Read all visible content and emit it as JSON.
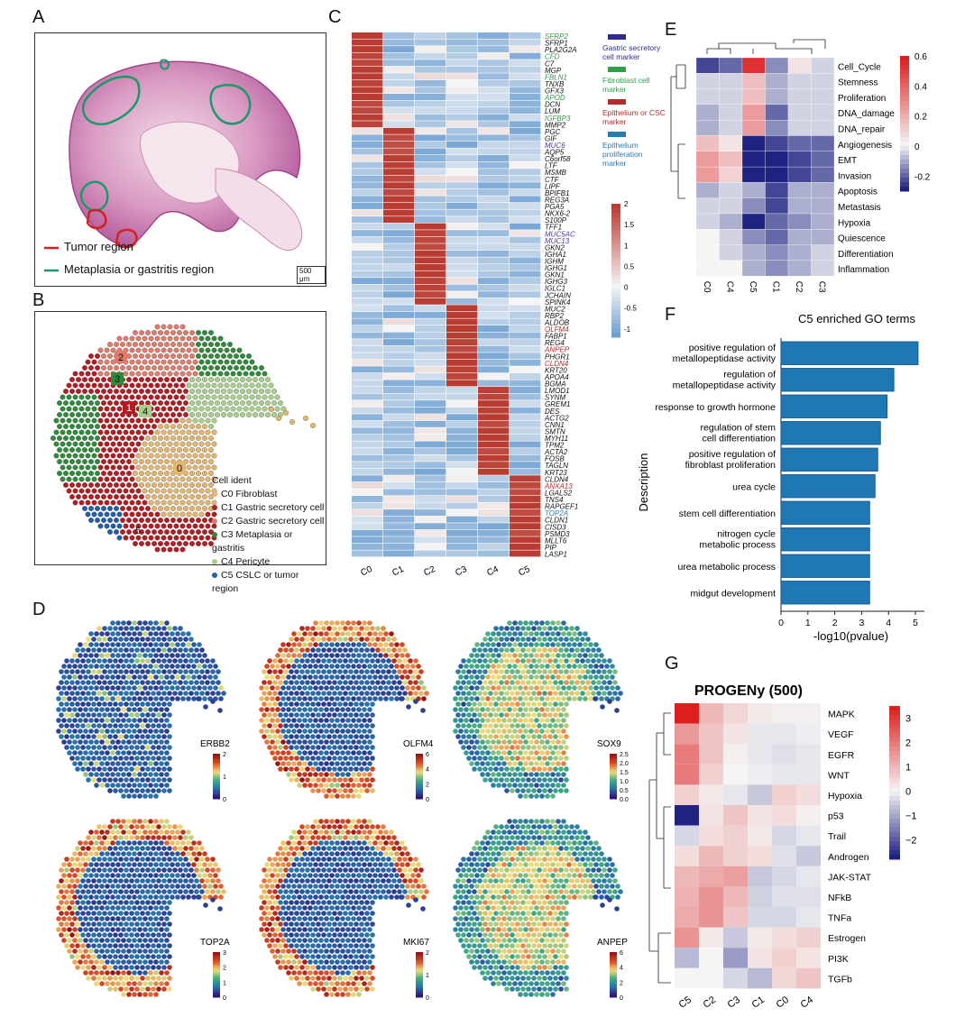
{
  "panels": {
    "A": "A",
    "B": "B",
    "C": "C",
    "D": "D",
    "E": "E",
    "F": "F",
    "G": "G"
  },
  "panelA": {
    "legend": [
      "Tumor region",
      "Metaplasia or gastritis region"
    ],
    "legend_colors": [
      "#d42020",
      "#1a9a6a"
    ],
    "scalebar": "500 μm"
  },
  "panelB": {
    "title": "Cell ident",
    "items": [
      {
        "label": "C0 Fibroblast",
        "color": "#e3b46c"
      },
      {
        "label": "C1 Gastric secretory cell",
        "color": "#b21d24"
      },
      {
        "label": "C2 Gastric secretory cell",
        "color": "#e07a6a"
      },
      {
        "label": "C3 Metaplasia or gastritis",
        "color": "#2e8b3a"
      },
      {
        "label": "C4 Pericyte",
        "color": "#a6cf8a"
      },
      {
        "label": "C5 CSLC or tumor region",
        "color": "#1f5fa8"
      }
    ],
    "cluster_labels": [
      "2",
      "3",
      "1",
      "4",
      "0",
      "5"
    ]
  },
  "panelC": {
    "columns": [
      "C0",
      "C1",
      "C2",
      "C3",
      "C4",
      "C5"
    ],
    "genes": [
      "SFRP2",
      "SFRP1",
      "PLA2G2A",
      "CFD",
      "C7",
      "MGP",
      "FBLN1",
      "TNXB",
      "GFX3",
      "APOD",
      "DCN",
      "LUM",
      "IGFBP3",
      "MMP2",
      "PGC",
      "GIF",
      "MUC6",
      "AQP5",
      "C6orf58",
      "LTF",
      "MSMB",
      "CTF",
      "LIPF",
      "BPIFB1",
      "REG3A",
      "PGA5",
      "NKX6-2",
      "S100P",
      "TFF1",
      "MUC5AC",
      "MUC13",
      "GKN2",
      "IGHA1",
      "IGHM",
      "IGHG1",
      "GKN1",
      "IGHG3",
      "IGLC1",
      "JCHAIN",
      "SPINK4",
      "MUC2",
      "RBP2",
      "ALDOB",
      "OLFM4",
      "FABP1",
      "REG4",
      "ANPEP",
      "PHGR1",
      "CLDN4",
      "KRT20",
      "APOA4",
      "BGMA",
      "LMOD1",
      "SYNM",
      "GREM1",
      "DES",
      "ACTG2",
      "CNN1",
      "SMTN",
      "MYH11",
      "TPM2",
      "ACTA2",
      "FOSB",
      "TAGLN",
      "KRT23",
      "CLDN4",
      "ANXA13",
      "LGALS2",
      "TNS4",
      "RAPGEF1",
      "TOP2A",
      "CLDN1",
      "CISD3",
      "PSMD3",
      "MLLT6",
      "PIP",
      "LASP1"
    ],
    "gene_colors": {
      "green": "#2e9a4a",
      "purple": "#4a3aa0",
      "red": "#b52a2a",
      "blue": "#2a7ab0",
      "black": "#111111"
    },
    "legend": [
      {
        "label": "Gastric secretory cell marker",
        "color": "#2c2a8c"
      },
      {
        "label": "Fibroblast cell marker",
        "color": "#2ea04a"
      },
      {
        "label": "Epithelium or CSC marker",
        "color": "#b52a2a"
      },
      {
        "label": "Epithelium proliferation marker",
        "color": "#2a7ab0"
      }
    ],
    "colorbar_ticks": [
      "2",
      "1.5",
      "1",
      "0.5",
      "0",
      "-0.5",
      "-1"
    ]
  },
  "panelD": {
    "maps": [
      {
        "gene": "ERBB2",
        "ticks": [
          "2",
          "1",
          "0"
        ]
      },
      {
        "gene": "OLFM4",
        "ticks": [
          "6",
          "4",
          "2",
          "0"
        ]
      },
      {
        "gene": "SOX9",
        "ticks": [
          "2.5",
          "2.0",
          "1.5",
          "1.0",
          "0.5",
          "0.0"
        ]
      },
      {
        "gene": "TOP2A",
        "ticks": [
          "3",
          "2",
          "1",
          "0"
        ]
      },
      {
        "gene": "MKI67",
        "ticks": [
          "2",
          "1",
          "0"
        ]
      },
      {
        "gene": "ANPEP",
        "ticks": [
          "6",
          "4",
          "2",
          "0"
        ]
      }
    ]
  },
  "panelE": {
    "rows": [
      "Cell_Cycle",
      "Stemness",
      "Proliferation",
      "DNA_damage",
      "DNA_repair",
      "Angiogenesis",
      "EMT",
      "Invasion",
      "Apoptosis",
      "Metastasis",
      "Hypoxia",
      "Quiescence",
      "Differentiation",
      "Inflammation"
    ],
    "cols": [
      "C0",
      "C4",
      "C5",
      "C1",
      "C2",
      "C3"
    ],
    "colorbar_ticks": [
      "0.6",
      "0.4",
      "0.2",
      "0",
      "-0.2"
    ],
    "values": [
      [
        -0.25,
        -0.2,
        0.55,
        -0.15,
        0.05,
        -0.05
      ],
      [
        -0.05,
        -0.05,
        0.15,
        -0.1,
        -0.05,
        -0.05
      ],
      [
        -0.05,
        -0.05,
        0.15,
        -0.1,
        -0.05,
        -0.05
      ],
      [
        -0.1,
        -0.05,
        0.25,
        -0.2,
        -0.05,
        -0.05
      ],
      [
        -0.1,
        -0.05,
        0.25,
        -0.15,
        -0.05,
        -0.05
      ],
      [
        0.15,
        0.05,
        -0.3,
        -0.25,
        -0.2,
        -0.2
      ],
      [
        0.25,
        0.15,
        -0.3,
        -0.3,
        -0.25,
        -0.2
      ],
      [
        0.25,
        0.1,
        -0.3,
        -0.3,
        -0.25,
        -0.2
      ],
      [
        -0.1,
        -0.05,
        -0.1,
        -0.25,
        -0.1,
        -0.1
      ],
      [
        -0.05,
        -0.05,
        -0.15,
        -0.25,
        -0.1,
        -0.1
      ],
      [
        -0.05,
        -0.1,
        -0.3,
        -0.2,
        -0.15,
        -0.1
      ],
      [
        0.0,
        -0.05,
        -0.15,
        -0.2,
        -0.1,
        -0.1
      ],
      [
        0.0,
        -0.05,
        -0.1,
        -0.15,
        -0.1,
        -0.05
      ],
      [
        0.0,
        0.0,
        -0.1,
        -0.15,
        -0.1,
        -0.05
      ]
    ]
  },
  "chart_data": {
    "type": "bar",
    "title": "C5 enriched GO terms",
    "xlabel": "-log10(pvalue)",
    "ylabel": "Description",
    "categories": [
      "positive regulation of metallopeptidase activity",
      "regulation of metallopeptidase activity",
      "response to growth hormone",
      "regulation of stem cell differentiation",
      "positive regulation of fibroblast proliferation",
      "urea cycle",
      "stem cell differentiation",
      "nitrogen cycle metabolic process",
      "urea metabolic process",
      "midgut development"
    ],
    "values": [
      5.1,
      4.2,
      3.95,
      3.7,
      3.6,
      3.5,
      3.3,
      3.3,
      3.3,
      3.3
    ],
    "xlim": [
      0,
      5.2
    ],
    "xticks": [
      "0",
      "1",
      "2",
      "3",
      "4",
      "5"
    ],
    "color": "#1f77b4"
  },
  "panelG": {
    "title": "PROGENy (500)",
    "rows": [
      "MAPK",
      "VEGF",
      "EGFR",
      "WNT",
      "Hypoxia",
      "p53",
      "Trail",
      "Androgen",
      "JAK-STAT",
      "NFkB",
      "TNFa",
      "Estrogen",
      "PI3K",
      "TGFb"
    ],
    "cols": [
      "C5",
      "C2",
      "C3",
      "C1",
      "C0",
      "C4"
    ],
    "colorbar_ticks": [
      "3",
      "2",
      "1",
      "0",
      "−1",
      "−2"
    ],
    "values": [
      [
        3.5,
        1.0,
        0.5,
        0.2,
        0.1,
        0.1
      ],
      [
        1.5,
        0.8,
        0.3,
        -0.2,
        -0.2,
        -0.1
      ],
      [
        2.0,
        0.8,
        0.1,
        -0.2,
        -0.3,
        -0.2
      ],
      [
        2.0,
        0.6,
        0.0,
        -0.1,
        -0.2,
        -0.2
      ],
      [
        0.6,
        0.2,
        -0.2,
        -0.6,
        0.6,
        0.4
      ],
      [
        -3.0,
        0.3,
        0.8,
        0.3,
        0.4,
        0.1
      ],
      [
        -0.4,
        0.4,
        0.6,
        0.2,
        -0.4,
        -0.2
      ],
      [
        0.4,
        1.0,
        0.6,
        0.4,
        -0.3,
        -0.6
      ],
      [
        1.0,
        1.2,
        1.4,
        -0.6,
        -0.4,
        -0.2
      ],
      [
        1.1,
        1.6,
        1.0,
        -0.5,
        -0.3,
        -0.3
      ],
      [
        1.2,
        1.6,
        0.8,
        -0.4,
        -0.4,
        -0.2
      ],
      [
        1.6,
        0.2,
        -0.6,
        0.2,
        0.4,
        0.6
      ],
      [
        -0.8,
        0.0,
        -1.2,
        0.3,
        0.6,
        0.3
      ],
      [
        0.0,
        0.0,
        -0.4,
        -0.8,
        0.5,
        0.8
      ]
    ]
  }
}
